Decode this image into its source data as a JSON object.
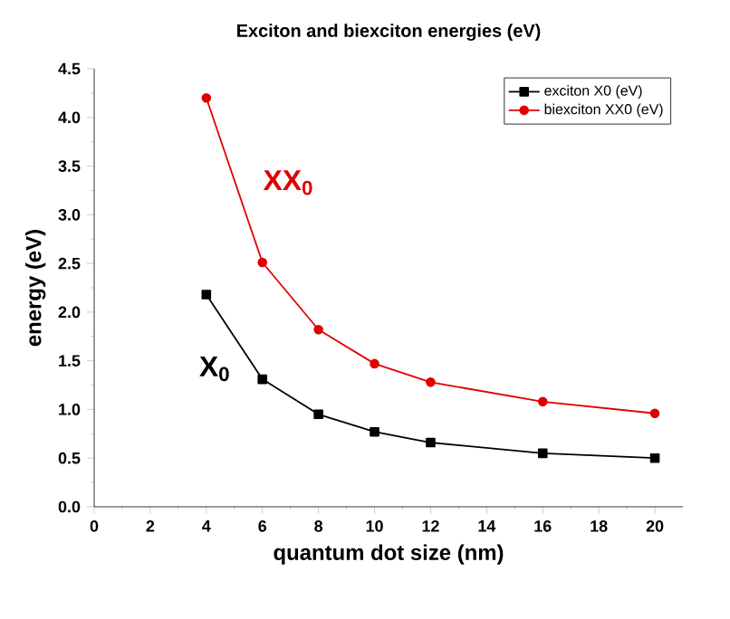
{
  "chart_data": {
    "type": "line",
    "title": "Exciton and biexciton energies (eV)",
    "xlabel": "quantum dot size (nm)",
    "ylabel": "energy (eV)",
    "x": [
      4,
      6,
      8,
      10,
      12,
      16,
      20
    ],
    "series": [
      {
        "name": "exciton X0 (eV)",
        "color": "#000000",
        "marker": "square",
        "values": [
          2.18,
          1.31,
          0.95,
          0.77,
          0.66,
          0.55,
          0.5
        ]
      },
      {
        "name": "biexciton XX0 (eV)",
        "color": "#e00000",
        "marker": "circle",
        "values": [
          4.2,
          2.51,
          1.82,
          1.47,
          1.28,
          1.08,
          0.96
        ]
      }
    ],
    "xlim": [
      0,
      21
    ],
    "xticks": [
      0,
      2,
      4,
      6,
      8,
      10,
      12,
      14,
      16,
      18,
      20
    ],
    "ylim": [
      0,
      4.5
    ],
    "yticks": [
      {
        "value": 0,
        "label": "0.0"
      },
      0.5,
      {
        "value": 1,
        "label": "1.0"
      },
      1.5,
      {
        "value": 2,
        "label": "2.0"
      },
      2.5,
      {
        "value": 3,
        "label": "3.0"
      },
      3.5,
      {
        "value": 4,
        "label": "4.0"
      },
      4.5
    ],
    "annotations": [
      "XX$_{0}$",
      "X$_{0}$"
    ],
    "legend": "top right",
    "grid": false,
    "line_style": "solid"
  }
}
